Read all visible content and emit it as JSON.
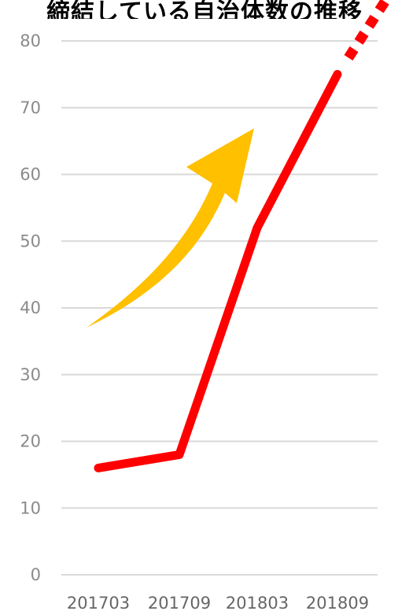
{
  "chart_data": {
    "type": "line",
    "title": "締結している自治体数の推移",
    "categories": [
      "201703",
      "201709",
      "201803",
      "201809"
    ],
    "series": [
      {
        "values": [
          16,
          18,
          52,
          75
        ],
        "color": "#ff0000"
      }
    ],
    "projection": {
      "from_category": "201809",
      "style": "dotted",
      "color": "#ff0000"
    },
    "ylim": [
      0,
      80
    ],
    "yticks": [
      0,
      10,
      20,
      30,
      40,
      50,
      60,
      70,
      80
    ],
    "grid": true,
    "annotations": [
      {
        "type": "upward-trend-arrow",
        "color": "#ffc000"
      }
    ]
  }
}
